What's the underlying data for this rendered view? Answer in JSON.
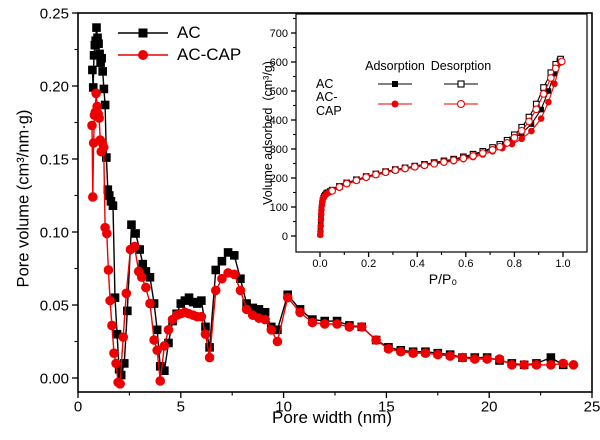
{
  "figure": {
    "background": "#ffffff",
    "axis_color": "#000000"
  },
  "colors": {
    "ac": "#000000",
    "ac_cap": "#ee0000"
  },
  "chart_data": [
    {
      "id": "main",
      "type": "line",
      "title": "",
      "xlabel": "Pore width (nm)",
      "ylabel": "Pore volume (cm³/nm·g)",
      "xlim": [
        0,
        25
      ],
      "ylim": [
        -0.01,
        0.25
      ],
      "grid": false,
      "legend_position": "top-left-inside",
      "x_ticks": [
        0,
        5,
        10,
        15,
        20,
        25
      ],
      "x_tick_labels": [
        "0",
        "5",
        "10",
        "15",
        "20",
        "25"
      ],
      "y_ticks": [
        0,
        0.05,
        0.1,
        0.15,
        0.2,
        0.25
      ],
      "y_tick_labels": [
        "0.00",
        "0.05",
        "0.10",
        "0.15",
        "0.20",
        "0.25"
      ],
      "series": [
        {
          "name": "AC",
          "color": "#000000",
          "marker": "filled-square",
          "x": [
            0.7,
            0.74,
            0.78,
            0.82,
            0.86,
            0.9,
            0.95,
            1.0,
            1.05,
            1.1,
            1.15,
            1.2,
            1.26,
            1.32,
            1.38,
            1.45,
            1.52,
            1.6,
            1.7,
            1.8,
            1.9,
            2.0,
            2.1,
            2.25,
            2.4,
            2.6,
            2.8,
            3.0,
            3.15,
            3.3,
            3.5,
            3.7,
            3.85,
            4.0,
            4.2,
            4.4,
            4.6,
            4.8,
            5.0,
            5.2,
            5.4,
            5.6,
            5.8,
            6.0,
            6.2,
            6.4,
            6.7,
            7.0,
            7.3,
            7.6,
            7.9,
            8.2,
            8.5,
            8.8,
            9.1,
            9.4,
            9.7,
            10.2,
            10.8,
            11.4,
            12.0,
            12.6,
            13.2,
            13.8,
            14.5,
            15.1,
            15.7,
            16.3,
            16.9,
            17.5,
            18.1,
            18.7,
            19.3,
            19.9,
            20.5,
            21.1,
            21.7,
            22.3,
            23.0,
            23.6
          ],
          "y": [
            0.211,
            0.199,
            0.221,
            0.228,
            0.231,
            0.24,
            0.233,
            0.229,
            0.222,
            0.216,
            0.219,
            0.21,
            0.198,
            0.187,
            0.151,
            0.129,
            0.125,
            0.121,
            0.118,
            0.055,
            0.03,
            0.006,
            0.002,
            0.01,
            0.046,
            0.105,
            0.099,
            0.088,
            0.078,
            0.073,
            0.069,
            0.051,
            0.033,
            0.008,
            0.005,
            0.024,
            0.039,
            0.044,
            0.051,
            0.053,
            0.055,
            0.052,
            0.051,
            0.053,
            0.035,
            0.021,
            0.074,
            0.08,
            0.086,
            0.084,
            0.068,
            0.051,
            0.048,
            0.047,
            0.045,
            0.035,
            0.033,
            0.057,
            0.047,
            0.04,
            0.039,
            0.039,
            0.036,
            0.035,
            0.026,
            0.021,
            0.019,
            0.018,
            0.018,
            0.017,
            0.016,
            0.014,
            0.014,
            0.014,
            0.012,
            0.01,
            0.009,
            0.01,
            0.014,
            0.009
          ]
        },
        {
          "name": "AC-CAP",
          "color": "#ee0000",
          "marker": "filled-circle",
          "x": [
            0.68,
            0.72,
            0.76,
            0.8,
            0.84,
            0.88,
            0.93,
            0.98,
            1.03,
            1.08,
            1.13,
            1.18,
            1.25,
            1.32,
            1.4,
            1.48,
            1.56,
            1.65,
            1.75,
            1.85,
            1.95,
            2.05,
            2.2,
            2.35,
            2.55,
            2.75,
            2.95,
            3.1,
            3.3,
            3.5,
            3.7,
            3.85,
            4.0,
            4.2,
            4.4,
            4.6,
            4.8,
            5.0,
            5.2,
            5.4,
            5.6,
            5.8,
            6.0,
            6.2,
            6.4,
            6.7,
            7.0,
            7.3,
            7.6,
            7.9,
            8.2,
            8.5,
            8.8,
            9.1,
            9.4,
            9.7,
            10.2,
            10.8,
            11.4,
            12.0,
            12.6,
            13.2,
            13.8,
            14.5,
            15.1,
            15.7,
            16.3,
            16.9,
            17.5,
            18.1,
            18.7,
            19.3,
            19.9,
            20.5,
            21.1,
            21.7,
            22.3,
            23.0,
            23.6,
            24.1
          ],
          "y": [
            0.173,
            0.124,
            0.161,
            0.18,
            0.182,
            0.195,
            0.186,
            0.181,
            0.178,
            0.163,
            0.155,
            0.161,
            0.158,
            0.103,
            0.099,
            0.074,
            0.053,
            0.036,
            0.017,
            0.01,
            -0.003,
            -0.004,
            0.028,
            0.058,
            0.088,
            0.09,
            0.073,
            0.069,
            0.062,
            0.051,
            0.026,
            0.019,
            -0.002,
            0.022,
            0.033,
            0.04,
            0.043,
            0.044,
            0.045,
            0.044,
            0.043,
            0.042,
            0.042,
            0.03,
            0.014,
            0.06,
            0.068,
            0.072,
            0.071,
            0.06,
            0.047,
            0.043,
            0.041,
            0.04,
            0.033,
            0.025,
            0.055,
            0.045,
            0.038,
            0.037,
            0.037,
            0.035,
            0.035,
            0.026,
            0.02,
            0.018,
            0.017,
            0.017,
            0.016,
            0.015,
            0.014,
            0.013,
            0.013,
            0.013,
            0.009,
            0.009,
            0.009,
            0.009,
            0.01,
            0.009
          ]
        }
      ]
    },
    {
      "id": "inset",
      "type": "line",
      "title": "",
      "xlabel": "P/P₀",
      "ylabel": "Volume adsorbed  (cm³/g)",
      "xlim": [
        -0.1,
        1.1
      ],
      "ylim": [
        -55,
        770
      ],
      "grid": false,
      "legend": {
        "col_headers": [
          "Adsorption",
          "Desorption"
        ],
        "rows": [
          "AC",
          "AC-CAP"
        ]
      },
      "x_ticks": [
        0.0,
        0.2,
        0.4,
        0.6,
        0.8,
        1.0
      ],
      "x_tick_labels": [
        "0.0",
        "0.2",
        "0.4",
        "0.6",
        "0.8",
        "1.0"
      ],
      "y_ticks": [
        0,
        100,
        200,
        300,
        400,
        500,
        600,
        700
      ],
      "y_tick_labels": [
        "0",
        "100",
        "200",
        "300",
        "400",
        "500",
        "600",
        "700"
      ],
      "series": [
        {
          "name": "AC adsorption",
          "color": "#000000",
          "marker": "filled-square",
          "x": [
            0.001,
            0.002,
            0.003,
            0.004,
            0.005,
            0.006,
            0.008,
            0.01,
            0.013,
            0.016,
            0.02,
            0.025,
            0.03,
            0.04,
            0.05,
            0.08,
            0.11,
            0.15,
            0.19,
            0.23,
            0.27,
            0.31,
            0.35,
            0.39,
            0.43,
            0.47,
            0.51,
            0.55,
            0.59,
            0.63,
            0.67,
            0.71,
            0.75,
            0.79,
            0.83,
            0.87,
            0.91,
            0.94,
            0.965,
            0.985
          ],
          "y": [
            5,
            20,
            40,
            62,
            80,
            95,
            112,
            124,
            132,
            138,
            143,
            148,
            151,
            155,
            158,
            170,
            182,
            193,
            204,
            213,
            221,
            228,
            234,
            240,
            246,
            252,
            258,
            264,
            271,
            280,
            290,
            302,
            315,
            333,
            354,
            386,
            436,
            500,
            560,
            605
          ]
        },
        {
          "name": "AC desorption",
          "color": "#000000",
          "marker": "open-square",
          "x": [
            0.05,
            0.08,
            0.11,
            0.15,
            0.19,
            0.23,
            0.27,
            0.31,
            0.35,
            0.39,
            0.43,
            0.47,
            0.51,
            0.55,
            0.59,
            0.63,
            0.67,
            0.71,
            0.74,
            0.77,
            0.8,
            0.83,
            0.86,
            0.89,
            0.92,
            0.95,
            0.97,
            0.99
          ],
          "y": [
            158,
            171,
            183,
            194,
            205,
            214,
            222,
            229,
            235,
            241,
            247,
            253,
            259,
            265,
            273,
            282,
            292,
            305,
            316,
            330,
            349,
            375,
            410,
            455,
            512,
            563,
            592,
            610
          ]
        },
        {
          "name": "AC-CAP adsorption",
          "color": "#ee0000",
          "marker": "filled-circle",
          "x": [
            0.001,
            0.002,
            0.003,
            0.004,
            0.005,
            0.006,
            0.008,
            0.01,
            0.013,
            0.016,
            0.02,
            0.025,
            0.03,
            0.04,
            0.05,
            0.08,
            0.11,
            0.15,
            0.19,
            0.23,
            0.27,
            0.31,
            0.35,
            0.39,
            0.43,
            0.47,
            0.51,
            0.55,
            0.59,
            0.63,
            0.67,
            0.71,
            0.75,
            0.79,
            0.83,
            0.87,
            0.91,
            0.94,
            0.965,
            0.99
          ],
          "y": [
            4,
            16,
            35,
            56,
            75,
            90,
            107,
            119,
            128,
            134,
            139,
            144,
            147,
            151,
            155,
            167,
            179,
            190,
            201,
            210,
            218,
            225,
            231,
            237,
            243,
            248,
            253,
            258,
            265,
            272,
            281,
            292,
            303,
            317,
            335,
            362,
            405,
            462,
            525,
            598
          ]
        },
        {
          "name": "AC-CAP desorption",
          "color": "#ee0000",
          "marker": "open-circle",
          "x": [
            0.05,
            0.08,
            0.11,
            0.15,
            0.19,
            0.23,
            0.27,
            0.31,
            0.35,
            0.39,
            0.43,
            0.47,
            0.51,
            0.55,
            0.59,
            0.63,
            0.67,
            0.71,
            0.74,
            0.77,
            0.8,
            0.83,
            0.86,
            0.89,
            0.92,
            0.95,
            0.97,
            0.995
          ],
          "y": [
            156,
            169,
            181,
            192,
            203,
            212,
            220,
            227,
            233,
            239,
            244,
            249,
            255,
            261,
            268,
            276,
            286,
            297,
            308,
            321,
            339,
            363,
            395,
            437,
            490,
            545,
            578,
            602
          ]
        }
      ]
    }
  ]
}
